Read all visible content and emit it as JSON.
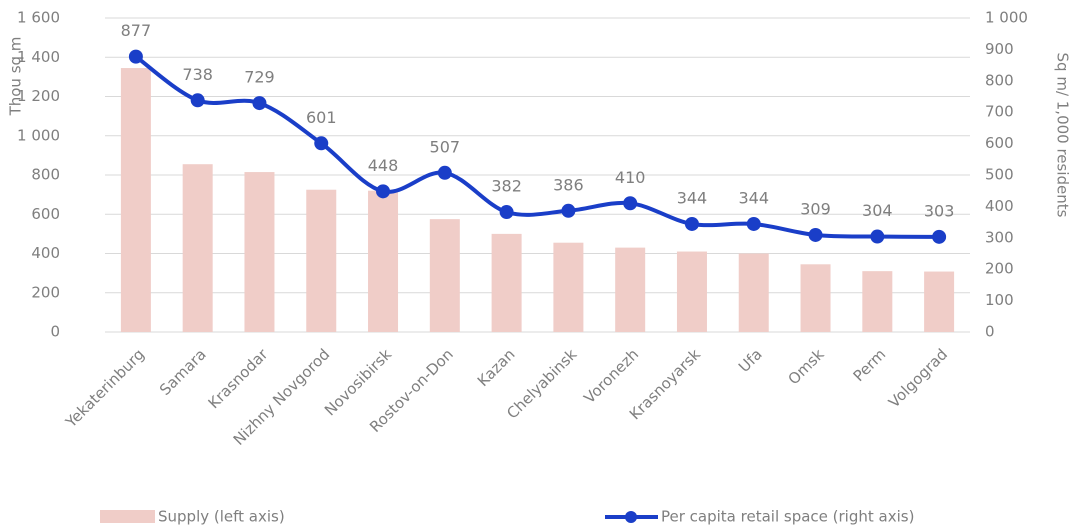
{
  "chart_data": {
    "type": "bar_line",
    "categories": [
      "Yekaterinburg",
      "Samara",
      "Krasnodar",
      "Nizhny Novgorod",
      "Novosibirsk",
      "Rostov-on-Don",
      "Kazan",
      "Chelyabinsk",
      "Voronezh",
      "Krasnoyarsk",
      "Ufa",
      "Omsk",
      "Perm",
      "Volgograd"
    ],
    "ylabel": "Thou sq m",
    "y2label": "Sq m/ 1,000 residents",
    "ylim": [
      0,
      1600
    ],
    "yticks": [
      0,
      200,
      400,
      600,
      800,
      {
        "value": 1000,
        "label": "1 000"
      },
      {
        "value": 1200,
        "label": "1 200"
      },
      {
        "value": 1400,
        "label": "1 400"
      },
      {
        "value": 1600,
        "label": "1 600"
      }
    ],
    "y2lim": [
      0,
      1000
    ],
    "y2ticks": [
      0,
      100,
      200,
      300,
      400,
      500,
      600,
      700,
      800,
      900,
      {
        "value": 1000,
        "label": "1 000"
      }
    ],
    "grid": true,
    "series": [
      {
        "name": "Supply (left axis)",
        "type": "bar",
        "color": "#f0cdc8",
        "values": [
          1345,
          855,
          815,
          725,
          720,
          575,
          500,
          455,
          430,
          410,
          400,
          345,
          310,
          308
        ]
      },
      {
        "name": "Per capita retail space (right axis)",
        "type": "line",
        "axis": "y2",
        "color": "#1a3ec8",
        "values": [
          877,
          738,
          729,
          601,
          448,
          507,
          382,
          386,
          410,
          344,
          344,
          309,
          304,
          303
        ]
      }
    ]
  }
}
